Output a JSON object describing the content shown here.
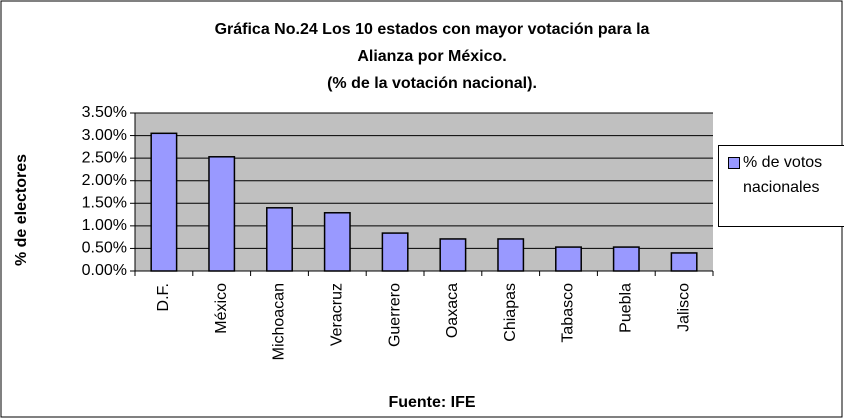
{
  "chart_data": {
    "type": "bar",
    "title": [
      "Gráfica No.24 Los 10 estados con mayor votación para la",
      "Alianza por México.",
      "(% de la votación nacional)."
    ],
    "x_label": "Fuente: IFE",
    "y_label": "% de electores",
    "categories": [
      "D.F.",
      "México",
      "Michoacan",
      "Veracruz",
      "Guerrero",
      "Oaxaca",
      "Chiapas",
      "Tabasco",
      "Puebla",
      "Jalisco"
    ],
    "series": [
      {
        "name": "% de votos nacionales",
        "color": "#9999ff",
        "values": [
          3.05,
          2.53,
          1.4,
          1.29,
          0.84,
          0.71,
          0.71,
          0.53,
          0.53,
          0.4
        ]
      }
    ],
    "ylim": [
      0,
      3.5
    ],
    "yticks": [
      {
        "value": 0,
        "label": "0.00%"
      },
      {
        "value": 0.5,
        "label": "0.50%"
      },
      {
        "value": 1,
        "label": "1.00%"
      },
      {
        "value": 1.5,
        "label": "1.50%"
      },
      {
        "value": 2,
        "label": "2.00%"
      },
      {
        "value": 2.5,
        "label": "2.50%"
      },
      {
        "value": 3,
        "label": "3.00%"
      },
      {
        "value": 3.5,
        "label": "3.50%"
      }
    ],
    "grid": true,
    "legend": "right",
    "plot_background": "#c0c0c0"
  }
}
